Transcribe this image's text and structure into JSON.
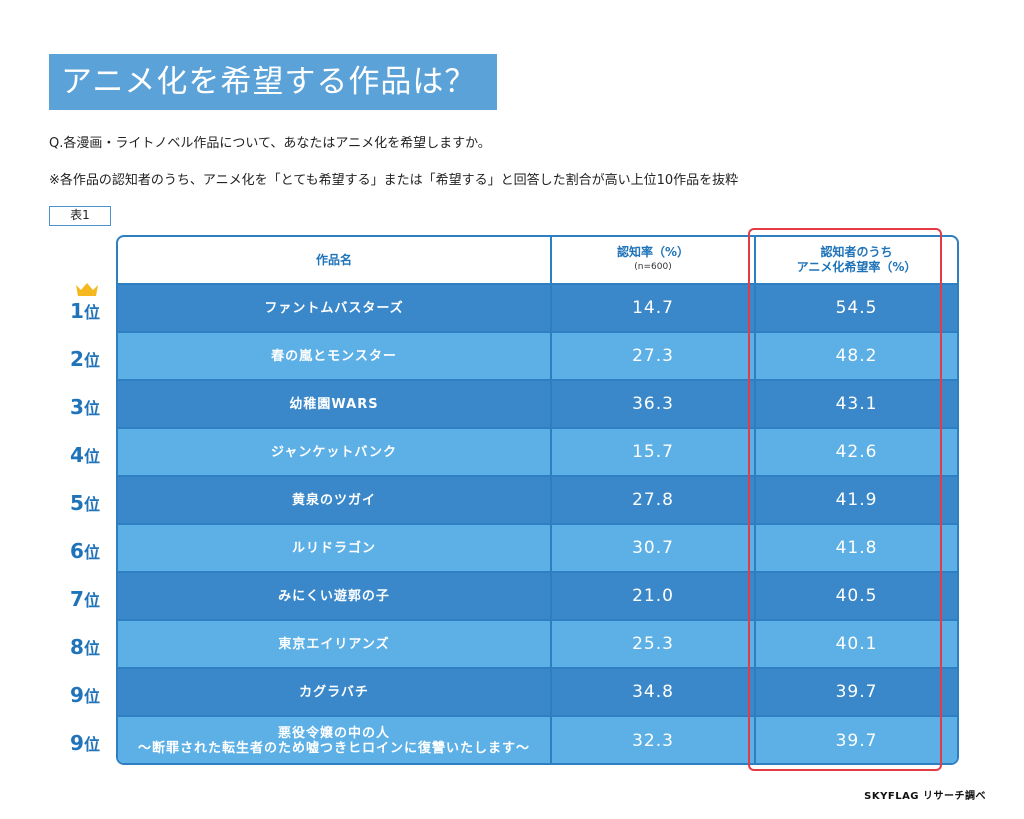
{
  "title": "アニメ化を希望する作品は？",
  "question": "Q.各漫画・ライトノベル作品について、あなたはアニメ化を希望しますか。",
  "note": "※各作品の認知者のうち、アニメ化を「とても希望する」または「希望する」と回答した割合が高い上位10作品を抜粋",
  "table_label": "表1",
  "headers": {
    "name": "作品名",
    "awareness": "認知率（%）",
    "awareness_sub": "(n=600)",
    "desire_line1": "認知者のうち",
    "desire_line2": "アニメ化希望率（%）"
  },
  "rows": [
    {
      "rank_num": "1",
      "rank_suffix": "位",
      "name": "ファントムバスターズ",
      "name2": "",
      "awareness": "14.7",
      "desire": "54.5"
    },
    {
      "rank_num": "2",
      "rank_suffix": "位",
      "name": "春の嵐とモンスター",
      "name2": "",
      "awareness": "27.3",
      "desire": "48.2"
    },
    {
      "rank_num": "3",
      "rank_suffix": "位",
      "name": "幼稚園WARS",
      "name2": "",
      "awareness": "36.3",
      "desire": "43.1"
    },
    {
      "rank_num": "4",
      "rank_suffix": "位",
      "name": "ジャンケットバンク",
      "name2": "",
      "awareness": "15.7",
      "desire": "42.6"
    },
    {
      "rank_num": "5",
      "rank_suffix": "位",
      "name": "黄泉のツガイ",
      "name2": "",
      "awareness": "27.8",
      "desire": "41.9"
    },
    {
      "rank_num": "6",
      "rank_suffix": "位",
      "name": "ルリドラゴン",
      "name2": "",
      "awareness": "30.7",
      "desire": "41.8"
    },
    {
      "rank_num": "7",
      "rank_suffix": "位",
      "name": "みにくい遊郭の子",
      "name2": "",
      "awareness": "21.0",
      "desire": "40.5"
    },
    {
      "rank_num": "8",
      "rank_suffix": "位",
      "name": "東京エイリアンズ",
      "name2": "",
      "awareness": "25.3",
      "desire": "40.1"
    },
    {
      "rank_num": "9",
      "rank_suffix": "位",
      "name": "カグラバチ",
      "name2": "",
      "awareness": "34.8",
      "desire": "39.7"
    },
    {
      "rank_num": "9",
      "rank_suffix": "位",
      "name": "悪役令嬢の中の人",
      "name2": "～断罪された転生者のため嘘つきヒロインに復讐いたします～",
      "awareness": "32.3",
      "desire": "39.7"
    }
  ],
  "credit": "SKYFLAG リサーチ調べ",
  "colors": {
    "title_bg": "#5aa2d8",
    "row_dark": "#3a88c9",
    "row_light": "#5cb0e6",
    "border": "#2e7fc2",
    "highlight": "#e53b45",
    "crown": "#f5b820"
  }
}
